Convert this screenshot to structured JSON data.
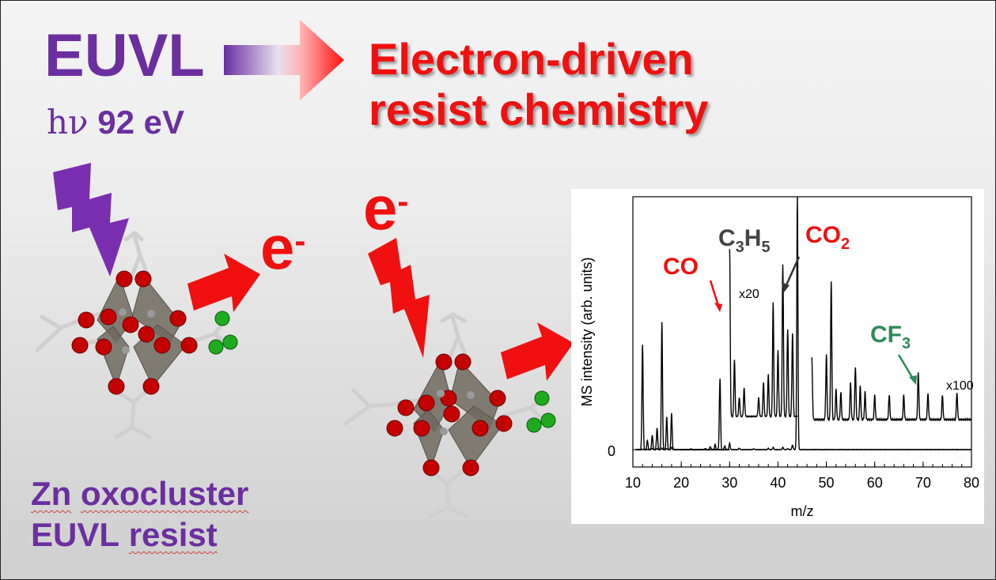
{
  "labels": {
    "euvl": "EUVL",
    "photon_symbol": "hν",
    "photon_energy": "92 eV",
    "headline_line1": "Electron-driven",
    "headline_line2": "resist chemistry",
    "electron_symbol": "e",
    "electron_charge": "-",
    "resist_line1_word1": "Zn",
    "resist_line1_word2": "oxocluster",
    "resist_line2_word1": "EUVL",
    "resist_line2_word2": "resist"
  },
  "colors": {
    "purple": "#6b2fa0",
    "red": "#f01010",
    "green": "#2e8b57",
    "oxygen": "#c00000",
    "ligand_green": "#1faa1f"
  },
  "icons": {
    "photon": "lightning-bolt-purple",
    "electron_beam": "lightning-bolt-red",
    "arrow": "block-arrow-right"
  },
  "chart_data": {
    "type": "line",
    "xlabel": "m/z",
    "ylabel": "MS intensity (arb. units)",
    "xlim": [
      10,
      80
    ],
    "xticks": [
      "10",
      "20",
      "30",
      "40",
      "50",
      "60",
      "70",
      "80"
    ],
    "yticks": [
      "0"
    ],
    "annotations": {
      "co": "CO",
      "c3h5_main": "C",
      "c3h5_sub1": "3",
      "c3h5_mid": "H",
      "c3h5_sub2": "5",
      "co2_main": "CO",
      "co2_sub": "2",
      "cf3_main": "CF",
      "cf3_sub": "3",
      "scale_x20": "x20",
      "scale_x100": "x100"
    },
    "series": [
      {
        "segment": "baseline",
        "peaks": [
          [
            12,
            0.15
          ],
          [
            13,
            0.1
          ],
          [
            14,
            0.5
          ],
          [
            15,
            0.35
          ],
          [
            16,
            0.6
          ],
          [
            17,
            0.4
          ],
          [
            18,
            0.9
          ],
          [
            22,
            0.3
          ],
          [
            25,
            0.4
          ],
          [
            26,
            1.2
          ],
          [
            27,
            2.0
          ],
          [
            28,
            28.0
          ],
          [
            29,
            1.5
          ],
          [
            30,
            2.5
          ],
          [
            32,
            0.6
          ],
          [
            35,
            0.3
          ],
          [
            38,
            0.5
          ],
          [
            39,
            0.9
          ],
          [
            41,
            0.9
          ],
          [
            42,
            0.4
          ],
          [
            43,
            1.8
          ],
          [
            44,
            100.0
          ]
        ]
      },
      {
        "segment": "x20",
        "x_range": [
          11,
          30
        ],
        "peaks": [
          [
            12,
            58
          ],
          [
            13,
            5
          ],
          [
            14,
            8
          ],
          [
            15,
            12
          ],
          [
            16,
            70
          ],
          [
            17,
            18
          ],
          [
            18,
            20
          ]
        ]
      },
      {
        "segment": "x20",
        "x_range": [
          30,
          44
        ],
        "peaks": [
          [
            30,
            88
          ],
          [
            31,
            30
          ],
          [
            32,
            10
          ],
          [
            33,
            15
          ],
          [
            36,
            10
          ],
          [
            37,
            18
          ],
          [
            38,
            22
          ],
          [
            39,
            60
          ],
          [
            40,
            35
          ],
          [
            41,
            80
          ],
          [
            42,
            46
          ],
          [
            43,
            44
          ]
        ]
      },
      {
        "segment": "x100",
        "x_range": [
          47,
          80
        ],
        "peaks": [
          [
            47,
            40
          ],
          [
            50,
            42
          ],
          [
            51,
            90
          ],
          [
            52,
            20
          ],
          [
            53,
            18
          ],
          [
            55,
            24
          ],
          [
            56,
            34
          ],
          [
            57,
            22
          ],
          [
            58,
            18
          ],
          [
            60,
            16
          ],
          [
            63,
            16
          ],
          [
            66,
            16
          ],
          [
            69,
            30
          ],
          [
            71,
            17
          ],
          [
            74,
            16
          ],
          [
            77,
            17
          ]
        ]
      }
    ]
  }
}
